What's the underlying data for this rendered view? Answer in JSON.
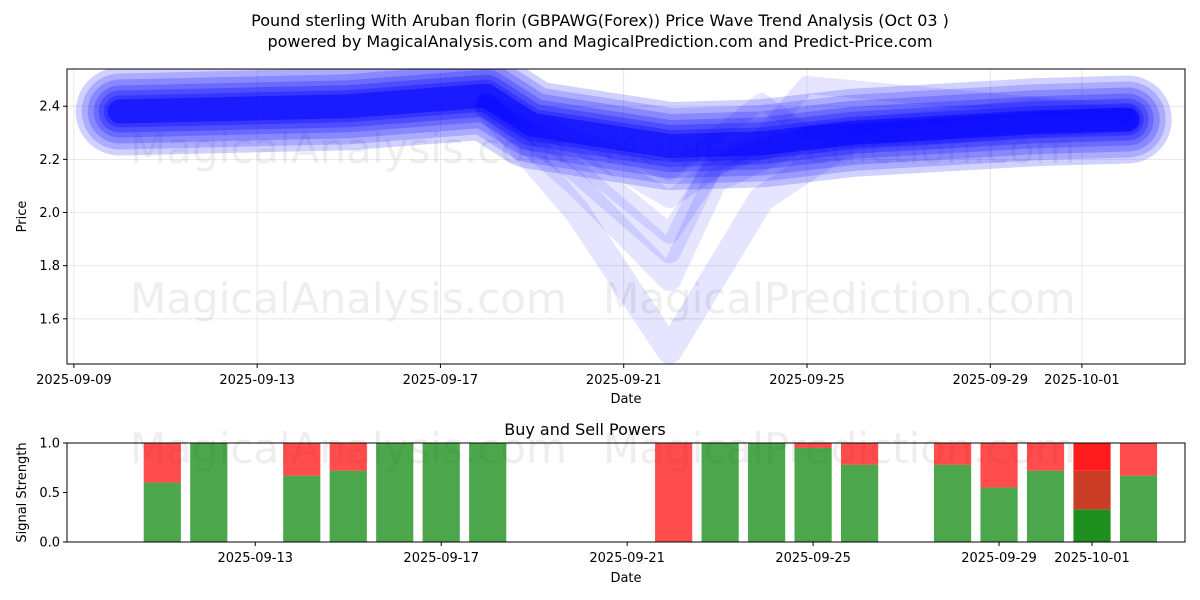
{
  "figure": {
    "title_line1": "Pound sterling With Aruban florin (GBPAWG(Forex)) Price Wave Trend Analysis (Oct 03 )",
    "title_line2": "powered by MagicalAnalysis.com and MagicalPrediction.com and Predict-Price.com",
    "watermarks": [
      "MagicalAnalysis.com",
      "MagicalPrediction.com"
    ]
  },
  "colors": {
    "wave": "#0000ff",
    "buy": "#008000",
    "sell": "#ff0000",
    "grid": "#b0b0b0"
  },
  "chart_data": [
    {
      "type": "area",
      "name": "price-wave",
      "title": "",
      "xlabel": "Date",
      "ylabel": "Price",
      "x_ticks": [
        "2025-09-09",
        "2025-09-13",
        "2025-09-17",
        "2025-09-21",
        "2025-09-25",
        "2025-09-29",
        "2025-10-01"
      ],
      "xlim": [
        "2025-09-09",
        "2025-10-03"
      ],
      "ylim": [
        1.43,
        2.54
      ],
      "y_ticks": [
        1.6,
        1.8,
        2.0,
        2.2,
        2.4
      ],
      "grid": true,
      "main_band": {
        "x": [
          "2025-09-10",
          "2025-09-15",
          "2025-09-18",
          "2025-09-19",
          "2025-09-22",
          "2025-09-24",
          "2025-09-26",
          "2025-09-30",
          "2025-10-02"
        ],
        "y": [
          2.38,
          2.4,
          2.44,
          2.33,
          2.25,
          2.26,
          2.3,
          2.34,
          2.35
        ]
      },
      "wave_paths": [
        {
          "x": [
            "2025-09-18",
            "2025-09-20",
            "2025-09-22",
            "2025-09-24",
            "2025-09-26",
            "2025-09-30",
            "2025-10-02"
          ],
          "y": [
            2.4,
            2.0,
            1.48,
            2.05,
            2.28,
            2.33,
            2.35
          ]
        },
        {
          "x": [
            "2025-09-18",
            "2025-09-20",
            "2025-09-22",
            "2025-09-23",
            "2025-09-25",
            "2025-09-30",
            "2025-10-02"
          ],
          "y": [
            2.4,
            2.1,
            1.75,
            2.12,
            2.28,
            2.33,
            2.35
          ]
        },
        {
          "x": [
            "2025-09-18",
            "2025-09-20",
            "2025-09-22",
            "2025-09-23",
            "2025-09-25",
            "2025-09-30",
            "2025-10-02"
          ],
          "y": [
            2.4,
            2.15,
            1.85,
            2.2,
            2.28,
            2.34,
            2.35
          ]
        },
        {
          "x": [
            "2025-09-18",
            "2025-09-20",
            "2025-09-22",
            "2025-09-23",
            "2025-09-25",
            "2025-09-30",
            "2025-10-02"
          ],
          "y": [
            2.4,
            2.2,
            1.92,
            2.18,
            2.29,
            2.34,
            2.35
          ]
        },
        {
          "x": [
            "2025-09-18",
            "2025-09-20",
            "2025-09-22",
            "2025-09-24",
            "2025-09-25",
            "2025-09-30",
            "2025-10-02"
          ],
          "y": [
            2.42,
            2.25,
            2.05,
            2.28,
            2.48,
            2.4,
            2.38
          ]
        },
        {
          "x": [
            "2025-09-18",
            "2025-09-20",
            "2025-09-22",
            "2025-09-24",
            "2025-09-25",
            "2025-09-30",
            "2025-10-02"
          ],
          "y": [
            2.42,
            2.28,
            2.15,
            2.42,
            2.3,
            2.4,
            2.36
          ]
        }
      ]
    },
    {
      "type": "bar",
      "name": "signal-strength",
      "title": "Buy and Sell Powers",
      "xlabel": "Date",
      "ylabel": "Signal Strength",
      "x_ticks": [
        "2025-09-13",
        "2025-09-17",
        "2025-09-21",
        "2025-09-25",
        "2025-09-29",
        "2025-10-01"
      ],
      "xlim": [
        "2025-09-09",
        "2025-10-03"
      ],
      "ylim": [
        0,
        1.0
      ],
      "y_ticks": [
        "0.0",
        "0.5",
        "1.0"
      ],
      "grid": false,
      "bars": [
        {
          "date": "2025-09-11",
          "buy": 0.6
        },
        {
          "date": "2025-09-12",
          "buy": 1.0
        },
        {
          "date": "2025-09-14",
          "buy": 0.67
        },
        {
          "date": "2025-09-15",
          "buy": 0.72
        },
        {
          "date": "2025-09-16",
          "buy": 1.0
        },
        {
          "date": "2025-09-17",
          "buy": 1.0
        },
        {
          "date": "2025-09-18",
          "buy": 1.0
        },
        {
          "date": "2025-09-22",
          "buy": 0.0
        },
        {
          "date": "2025-09-23",
          "buy": 1.0
        },
        {
          "date": "2025-09-24",
          "buy": 1.0
        },
        {
          "date": "2025-09-25",
          "buy": 0.95
        },
        {
          "date": "2025-09-26",
          "buy": 0.78
        },
        {
          "date": "2025-09-28",
          "buy": 0.78
        },
        {
          "date": "2025-09-29",
          "buy": 0.55
        },
        {
          "date": "2025-09-30",
          "buy": 0.72
        },
        {
          "date": "2025-10-01",
          "buy": 0.33,
          "stack": [
            {
              "color": "#138a13",
              "from": 0,
              "to": 0.33
            },
            {
              "color": "#c8321a",
              "from": 0.33,
              "to": 0.72
            },
            {
              "color": "#ff1010",
              "from": 0.72,
              "to": 1.0
            }
          ]
        },
        {
          "date": "2025-10-02",
          "buy": 0.67
        }
      ]
    }
  ]
}
